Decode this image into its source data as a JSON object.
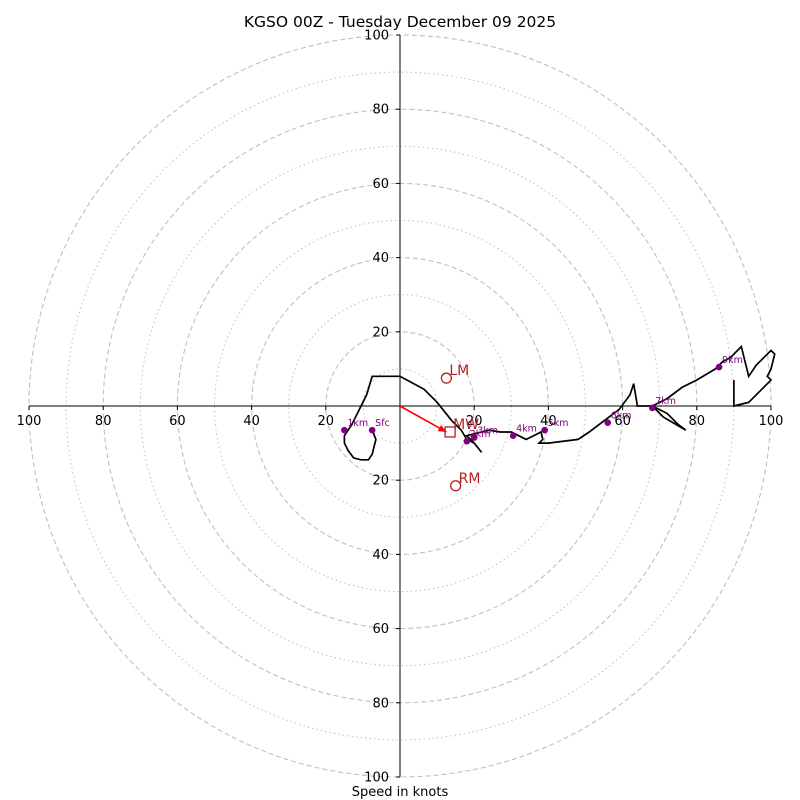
{
  "chart_data": {
    "type": "hodograph",
    "title": "KGSO 00Z - Tuesday December 09 2025",
    "xlabel": "Speed in knots",
    "xlim": [
      -100,
      100
    ],
    "ylim": [
      -100,
      100
    ],
    "rings_dashed": [
      20,
      40,
      60,
      80,
      100
    ],
    "rings_dotted": [
      10,
      30,
      50,
      70,
      90
    ],
    "x_tick_labels": [
      "100",
      "80",
      "60",
      "40",
      "20",
      "20",
      "40",
      "60",
      "80",
      "100"
    ],
    "y_tick_labels": [
      "100",
      "80",
      "60",
      "40",
      "20",
      "20",
      "40",
      "60",
      "80",
      "100"
    ],
    "colors": {
      "trace": "#000000",
      "level": "#800080",
      "motion": "#b22222",
      "shear": "#ff0000",
      "rings": "#c0c0c0"
    },
    "trace": [
      [
        -7.5,
        -6.5
      ],
      [
        -6.5,
        -9
      ],
      [
        -7,
        -11
      ],
      [
        -7.5,
        -13
      ],
      [
        -8.5,
        -14.5
      ],
      [
        -10.5,
        -14.5
      ],
      [
        -12.5,
        -14
      ],
      [
        -14,
        -12
      ],
      [
        -15,
        -10
      ],
      [
        -15,
        -8
      ],
      [
        -13,
        -5
      ],
      [
        -11,
        -1
      ],
      [
        -9,
        3
      ],
      [
        -7.5,
        8
      ],
      [
        0,
        8
      ],
      [
        6.5,
        4.5
      ],
      [
        10,
        1
      ],
      [
        14,
        -4
      ],
      [
        16.5,
        -6.5
      ],
      [
        18,
        -9
      ],
      [
        20,
        -10
      ],
      [
        22,
        -12.5
      ],
      [
        20,
        -10
      ],
      [
        18,
        -8
      ],
      [
        20,
        -7.5
      ],
      [
        24,
        -6.5
      ],
      [
        27,
        -7
      ],
      [
        30,
        -7
      ],
      [
        34,
        -9
      ],
      [
        36,
        -8
      ],
      [
        38,
        -7
      ],
      [
        38.5,
        -9
      ],
      [
        37.5,
        -10
      ],
      [
        40,
        -10
      ],
      [
        48,
        -9
      ],
      [
        51,
        -7
      ],
      [
        55,
        -4
      ],
      [
        59,
        -1
      ],
      [
        62,
        3
      ],
      [
        63,
        6
      ],
      [
        64,
        0
      ],
      [
        68,
        0
      ],
      [
        72,
        -2
      ],
      [
        75,
        -5
      ],
      [
        77,
        -6.5
      ],
      [
        71,
        -3
      ],
      [
        68,
        0
      ],
      [
        72,
        2
      ],
      [
        76,
        5
      ],
      [
        80,
        7
      ],
      [
        85,
        10
      ],
      [
        87,
        12
      ],
      [
        89,
        13
      ],
      [
        92,
        16
      ],
      [
        94,
        8
      ],
      [
        96,
        11
      ],
      [
        98,
        13
      ],
      [
        100,
        15
      ],
      [
        101,
        14
      ],
      [
        100,
        10
      ],
      [
        99,
        8
      ],
      [
        100,
        7
      ],
      [
        97,
        4
      ],
      [
        94,
        1
      ],
      [
        90,
        0
      ],
      [
        90,
        7
      ]
    ],
    "levels": [
      {
        "label": "Sfc",
        "x": -7.5,
        "y": -6.5
      },
      {
        "label": "1km",
        "x": -15,
        "y": -6.5
      },
      {
        "label": "2km",
        "x": 18,
        "y": -9.5
      },
      {
        "label": "3km",
        "x": 20,
        "y": -8.5
      },
      {
        "label": "4km",
        "x": 30.5,
        "y": -8
      },
      {
        "label": "5km",
        "x": 39,
        "y": -6.5
      },
      {
        "label": "6km",
        "x": 56,
        "y": -4.5
      },
      {
        "label": "7km",
        "x": 68,
        "y": -0.5
      },
      {
        "label": "9km",
        "x": 86,
        "y": 10.5
      }
    ],
    "storm_motion": [
      {
        "label": "LM",
        "x": 12.5,
        "y": 7.5,
        "marker": "circle"
      },
      {
        "label": "RM",
        "x": 15,
        "y": -21.5,
        "marker": "circle"
      },
      {
        "label": "MW",
        "x": 13.5,
        "y": -7,
        "marker": "square"
      }
    ],
    "shear_vector": {
      "from": [
        0,
        0
      ],
      "to": [
        12.5,
        -7
      ]
    }
  }
}
